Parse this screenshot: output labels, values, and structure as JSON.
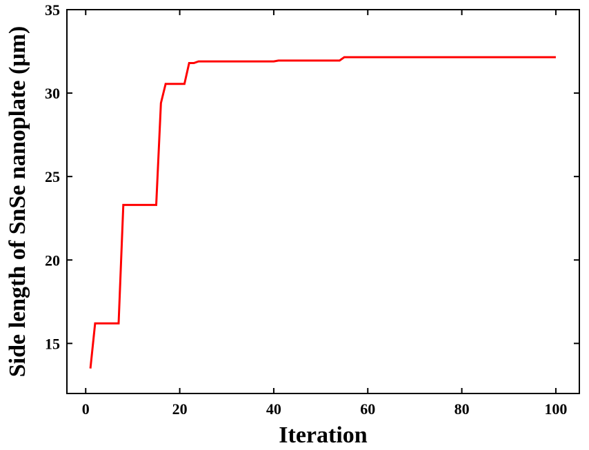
{
  "chart_data": {
    "type": "line",
    "title": "",
    "xlabel": "Iteration",
    "ylabel": "Side length of SnSe nanoplate (μm)",
    "xlim": [
      -4,
      105
    ],
    "ylim": [
      12,
      35
    ],
    "x_ticks": [
      0,
      20,
      40,
      60,
      80,
      100
    ],
    "y_ticks": [
      15,
      20,
      25,
      30,
      35
    ],
    "x_tick_labels": [
      "0",
      "20",
      "40",
      "60",
      "80",
      "100"
    ],
    "y_tick_labels": [
      "15",
      "20",
      "25",
      "30",
      "35"
    ],
    "grid": false,
    "legend": "none",
    "line_color": "#ff0000",
    "series": [
      {
        "x": [
          1,
          2,
          3,
          4,
          5,
          6,
          7,
          8,
          9,
          10,
          11,
          12,
          13,
          14,
          15,
          16,
          17,
          18,
          19,
          20,
          21,
          22,
          23,
          24,
          25,
          30,
          35,
          40,
          41,
          45,
          50,
          54,
          55,
          60,
          70,
          80,
          90,
          100
        ],
        "y": [
          13.5,
          16.2,
          16.2,
          16.2,
          16.2,
          16.2,
          16.2,
          23.3,
          23.3,
          23.3,
          23.3,
          23.3,
          23.3,
          23.3,
          23.3,
          29.4,
          30.55,
          30.55,
          30.55,
          30.55,
          30.55,
          31.8,
          31.8,
          31.9,
          31.9,
          31.9,
          31.9,
          31.9,
          31.95,
          31.95,
          31.95,
          31.95,
          32.15,
          32.15,
          32.15,
          32.15,
          32.15,
          32.15
        ]
      }
    ]
  }
}
